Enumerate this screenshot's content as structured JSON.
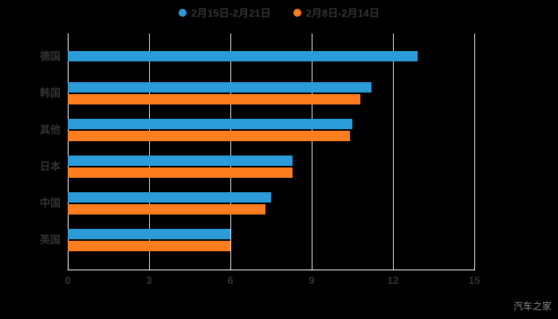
{
  "legend": {
    "items": [
      {
        "label": "2月15日-2月21日",
        "color": "#2b9cd8"
      },
      {
        "label": "2月8日-2月14日",
        "color": "#fd7d1f"
      }
    ]
  },
  "watermark": {
    "text": "汽车之家"
  },
  "chart_data": {
    "type": "bar",
    "orientation": "horizontal",
    "title": "",
    "xlabel": "",
    "ylabel": "",
    "categories": [
      "德国",
      "韩国",
      "其他",
      "日本",
      "中国",
      "英国"
    ],
    "series": [
      {
        "name": "2月15日-2月21日",
        "color": "#2b9cd8",
        "values": [
          12.9,
          11.2,
          10.5,
          8.3,
          7.5,
          6.0
        ]
      },
      {
        "name": "2月8日-2月14日",
        "color": "#fd7d1f",
        "values": [
          null,
          10.8,
          10.4,
          8.3,
          7.3,
          6.0
        ]
      }
    ],
    "xlim": [
      0,
      15
    ],
    "xticks": [
      0,
      3,
      6,
      9,
      12,
      15
    ],
    "grid": true,
    "legend_position": "top",
    "axis_color": "#ffffff",
    "gridline_color": "#e6e6e6",
    "label_color": "#333333",
    "background_color": "#000000"
  }
}
